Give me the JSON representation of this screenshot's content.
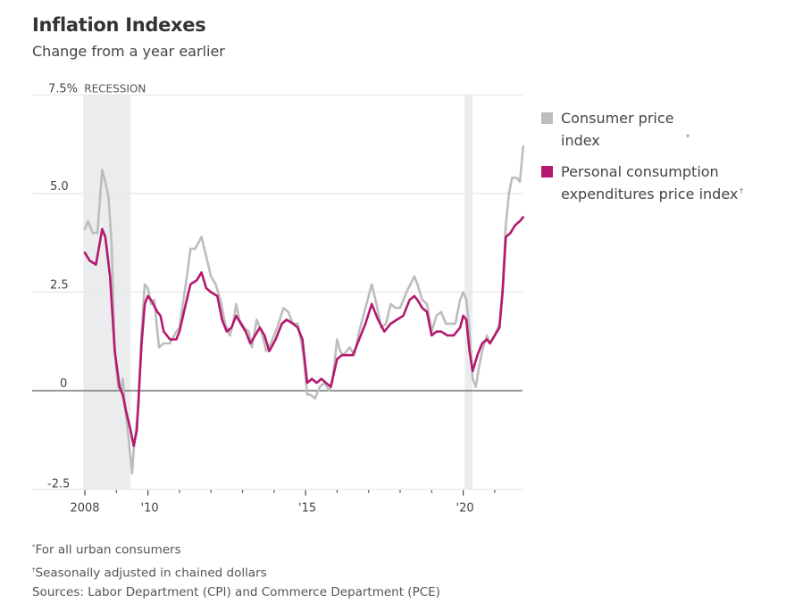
{
  "chart_data": {
    "type": "line",
    "title": "Inflation Indexes",
    "subtitle": "Change from a year earlier",
    "xlabel": "",
    "ylabel": "",
    "ylim": [
      -2.5,
      7.5
    ],
    "xlim": [
      2007.95,
      2021.95
    ],
    "y_ticks": [
      {
        "value": 7.5,
        "label": "7.5%"
      },
      {
        "value": 5.0,
        "label": "5.0"
      },
      {
        "value": 2.5,
        "label": "2.5"
      },
      {
        "value": 0,
        "label": "0"
      },
      {
        "value": -2.5,
        "label": "-2.5"
      }
    ],
    "x_ticks": [
      {
        "value": 2008,
        "label": "2008",
        "major": true
      },
      {
        "value": 2009,
        "label": "",
        "major": false
      },
      {
        "value": 2010,
        "label": "'10",
        "major": true
      },
      {
        "value": 2011,
        "label": "",
        "major": false
      },
      {
        "value": 2012,
        "label": "",
        "major": false
      },
      {
        "value": 2013,
        "label": "",
        "major": false
      },
      {
        "value": 2014,
        "label": "",
        "major": false
      },
      {
        "value": 2015,
        "label": "'15",
        "major": true
      },
      {
        "value": 2016,
        "label": "",
        "major": false
      },
      {
        "value": 2017,
        "label": "",
        "major": false
      },
      {
        "value": 2018,
        "label": "",
        "major": false
      },
      {
        "value": 2019,
        "label": "",
        "major": false
      },
      {
        "value": 2020,
        "label": "'20",
        "major": true
      },
      {
        "value": 2021,
        "label": "",
        "major": false
      }
    ],
    "grid": true,
    "recessions": [
      {
        "label": "RECESSION",
        "start": 2007.95,
        "end": 2009.45
      },
      {
        "label": "",
        "start": 2020.05,
        "end": 2020.3
      }
    ],
    "legend_position": "right",
    "series": [
      {
        "name": "Consumer price index",
        "footnote_mark": "*",
        "color": "#bdbdbd",
        "points": [
          [
            2008.0,
            4.1
          ],
          [
            2008.1,
            4.3
          ],
          [
            2008.25,
            4.0
          ],
          [
            2008.4,
            4.0
          ],
          [
            2008.55,
            5.6
          ],
          [
            2008.65,
            5.3
          ],
          [
            2008.75,
            4.9
          ],
          [
            2008.85,
            3.7
          ],
          [
            2008.95,
            1.0
          ],
          [
            2009.05,
            0.1
          ],
          [
            2009.15,
            0.0
          ],
          [
            2009.2,
            0.3
          ],
          [
            2009.3,
            -0.6
          ],
          [
            2009.4,
            -1.3
          ],
          [
            2009.5,
            -2.1
          ],
          [
            2009.55,
            -1.5
          ],
          [
            2009.7,
            -0.4
          ],
          [
            2009.8,
            1.5
          ],
          [
            2009.9,
            2.7
          ],
          [
            2010.0,
            2.6
          ],
          [
            2010.1,
            2.2
          ],
          [
            2010.2,
            2.3
          ],
          [
            2010.35,
            1.1
          ],
          [
            2010.5,
            1.2
          ],
          [
            2010.7,
            1.2
          ],
          [
            2010.9,
            1.5
          ],
          [
            2011.0,
            1.6
          ],
          [
            2011.2,
            2.7
          ],
          [
            2011.35,
            3.6
          ],
          [
            2011.5,
            3.6
          ],
          [
            2011.7,
            3.9
          ],
          [
            2011.85,
            3.4
          ],
          [
            2012.0,
            2.9
          ],
          [
            2012.15,
            2.7
          ],
          [
            2012.3,
            2.3
          ],
          [
            2012.45,
            1.7
          ],
          [
            2012.6,
            1.4
          ],
          [
            2012.7,
            1.7
          ],
          [
            2012.8,
            2.2
          ],
          [
            2012.9,
            1.8
          ],
          [
            2013.05,
            1.6
          ],
          [
            2013.2,
            1.5
          ],
          [
            2013.3,
            1.1
          ],
          [
            2013.45,
            1.8
          ],
          [
            2013.6,
            1.5
          ],
          [
            2013.75,
            1.0
          ],
          [
            2013.9,
            1.2
          ],
          [
            2014.1,
            1.6
          ],
          [
            2014.3,
            2.1
          ],
          [
            2014.45,
            2.0
          ],
          [
            2014.6,
            1.7
          ],
          [
            2014.75,
            1.7
          ],
          [
            2014.85,
            1.3
          ],
          [
            2014.95,
            0.8
          ],
          [
            2015.05,
            -0.1
          ],
          [
            2015.15,
            -0.1
          ],
          [
            2015.3,
            -0.2
          ],
          [
            2015.45,
            0.1
          ],
          [
            2015.6,
            0.2
          ],
          [
            2015.75,
            0.0
          ],
          [
            2015.85,
            0.2
          ],
          [
            2016.0,
            1.3
          ],
          [
            2016.1,
            1.0
          ],
          [
            2016.2,
            0.9
          ],
          [
            2016.4,
            1.1
          ],
          [
            2016.55,
            0.9
          ],
          [
            2016.7,
            1.5
          ],
          [
            2016.9,
            2.1
          ],
          [
            2017.1,
            2.7
          ],
          [
            2017.25,
            2.2
          ],
          [
            2017.4,
            1.6
          ],
          [
            2017.55,
            1.7
          ],
          [
            2017.7,
            2.2
          ],
          [
            2017.85,
            2.1
          ],
          [
            2018.0,
            2.1
          ],
          [
            2018.2,
            2.5
          ],
          [
            2018.45,
            2.9
          ],
          [
            2018.55,
            2.7
          ],
          [
            2018.7,
            2.3
          ],
          [
            2018.85,
            2.2
          ],
          [
            2019.0,
            1.5
          ],
          [
            2019.15,
            1.9
          ],
          [
            2019.3,
            2.0
          ],
          [
            2019.45,
            1.7
          ],
          [
            2019.6,
            1.7
          ],
          [
            2019.75,
            1.7
          ],
          [
            2019.9,
            2.3
          ],
          [
            2020.0,
            2.5
          ],
          [
            2020.1,
            2.3
          ],
          [
            2020.2,
            1.5
          ],
          [
            2020.3,
            0.3
          ],
          [
            2020.4,
            0.1
          ],
          [
            2020.5,
            0.6
          ],
          [
            2020.6,
            1.0
          ],
          [
            2020.75,
            1.4
          ],
          [
            2020.85,
            1.2
          ],
          [
            2021.0,
            1.4
          ],
          [
            2021.15,
            1.7
          ],
          [
            2021.25,
            2.6
          ],
          [
            2021.35,
            4.2
          ],
          [
            2021.45,
            5.0
          ],
          [
            2021.55,
            5.4
          ],
          [
            2021.7,
            5.4
          ],
          [
            2021.8,
            5.3
          ],
          [
            2021.9,
            6.2
          ]
        ]
      },
      {
        "name": "Personal consumption expenditures price index",
        "footnote_mark": "†",
        "color": "#b5186e",
        "points": [
          [
            2008.0,
            3.5
          ],
          [
            2008.15,
            3.3
          ],
          [
            2008.35,
            3.2
          ],
          [
            2008.55,
            4.1
          ],
          [
            2008.65,
            3.9
          ],
          [
            2008.8,
            2.9
          ],
          [
            2008.95,
            1.0
          ],
          [
            2009.1,
            0.1
          ],
          [
            2009.2,
            -0.1
          ],
          [
            2009.3,
            -0.5
          ],
          [
            2009.45,
            -1.0
          ],
          [
            2009.55,
            -1.4
          ],
          [
            2009.65,
            -1.0
          ],
          [
            2009.8,
            1.2
          ],
          [
            2009.9,
            2.2
          ],
          [
            2010.0,
            2.4
          ],
          [
            2010.1,
            2.3
          ],
          [
            2010.3,
            2.0
          ],
          [
            2010.4,
            1.9
          ],
          [
            2010.5,
            1.5
          ],
          [
            2010.7,
            1.3
          ],
          [
            2010.9,
            1.3
          ],
          [
            2011.0,
            1.5
          ],
          [
            2011.2,
            2.2
          ],
          [
            2011.35,
            2.7
          ],
          [
            2011.55,
            2.8
          ],
          [
            2011.7,
            3.0
          ],
          [
            2011.85,
            2.6
          ],
          [
            2012.0,
            2.5
          ],
          [
            2012.2,
            2.4
          ],
          [
            2012.35,
            1.8
          ],
          [
            2012.5,
            1.5
          ],
          [
            2012.65,
            1.6
          ],
          [
            2012.8,
            1.9
          ],
          [
            2012.95,
            1.7
          ],
          [
            2013.1,
            1.5
          ],
          [
            2013.25,
            1.2
          ],
          [
            2013.4,
            1.4
          ],
          [
            2013.55,
            1.6
          ],
          [
            2013.7,
            1.4
          ],
          [
            2013.85,
            1.0
          ],
          [
            2014.05,
            1.3
          ],
          [
            2014.25,
            1.7
          ],
          [
            2014.4,
            1.8
          ],
          [
            2014.6,
            1.7
          ],
          [
            2014.75,
            1.6
          ],
          [
            2014.9,
            1.3
          ],
          [
            2015.05,
            0.2
          ],
          [
            2015.2,
            0.3
          ],
          [
            2015.35,
            0.2
          ],
          [
            2015.5,
            0.3
          ],
          [
            2015.65,
            0.2
          ],
          [
            2015.8,
            0.1
          ],
          [
            2016.0,
            0.8
          ],
          [
            2016.15,
            0.9
          ],
          [
            2016.3,
            0.9
          ],
          [
            2016.5,
            0.9
          ],
          [
            2016.7,
            1.3
          ],
          [
            2016.9,
            1.7
          ],
          [
            2017.1,
            2.2
          ],
          [
            2017.3,
            1.8
          ],
          [
            2017.5,
            1.5
          ],
          [
            2017.7,
            1.7
          ],
          [
            2017.9,
            1.8
          ],
          [
            2018.1,
            1.9
          ],
          [
            2018.3,
            2.3
          ],
          [
            2018.45,
            2.4
          ],
          [
            2018.55,
            2.3
          ],
          [
            2018.7,
            2.1
          ],
          [
            2018.85,
            2.0
          ],
          [
            2019.0,
            1.4
          ],
          [
            2019.15,
            1.5
          ],
          [
            2019.3,
            1.5
          ],
          [
            2019.5,
            1.4
          ],
          [
            2019.7,
            1.4
          ],
          [
            2019.9,
            1.6
          ],
          [
            2020.0,
            1.9
          ],
          [
            2020.1,
            1.8
          ],
          [
            2020.2,
            1.0
          ],
          [
            2020.3,
            0.5
          ],
          [
            2020.45,
            0.9
          ],
          [
            2020.6,
            1.2
          ],
          [
            2020.75,
            1.3
          ],
          [
            2020.85,
            1.2
          ],
          [
            2021.0,
            1.4
          ],
          [
            2021.15,
            1.6
          ],
          [
            2021.25,
            2.5
          ],
          [
            2021.35,
            3.9
          ],
          [
            2021.5,
            4.0
          ],
          [
            2021.65,
            4.2
          ],
          [
            2021.8,
            4.3
          ],
          [
            2021.9,
            4.4
          ]
        ]
      }
    ],
    "footnotes": [
      {
        "mark": "*",
        "text": "For all urban consumers"
      },
      {
        "mark": "†",
        "text": "Seasonally adjusted in chained dollars"
      },
      {
        "mark": "",
        "text": "Sources: Labor Department (CPI) and Commerce Department (PCE)"
      }
    ]
  },
  "header": {
    "title": "Inflation Indexes",
    "subtitle": "Change from a year earlier"
  },
  "legend": {
    "items": [
      {
        "label": "Consumer price index",
        "mark": "*",
        "color": "#bdbdbd"
      },
      {
        "label": "Personal consumption expenditures price index",
        "mark": "†",
        "color": "#b5186e"
      }
    ]
  },
  "footer": {
    "note1_mark": "*",
    "note1": "For all urban consumers",
    "note2_mark": "†",
    "note2": "Seasonally adjusted in chained dollars",
    "sources": "Sources: Labor Department (CPI) and Commerce Department (PCE)"
  }
}
